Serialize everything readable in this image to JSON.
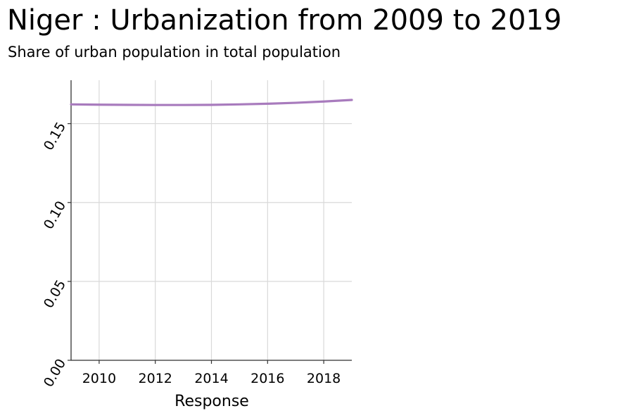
{
  "chart_data": {
    "type": "line",
    "title": "Niger : Urbanization from 2009 to 2019",
    "subtitle": "Share of urban population in total population",
    "xlabel": "Response",
    "ylabel": "",
    "x": [
      2009,
      2010,
      2011,
      2012,
      2013,
      2014,
      2015,
      2016,
      2017,
      2018,
      2019
    ],
    "series": [
      {
        "values": [
          0.1622,
          0.162,
          0.1619,
          0.1618,
          0.1618,
          0.1619,
          0.1622,
          0.1626,
          0.1632,
          0.164,
          0.165
        ]
      }
    ],
    "xlim": [
      2009,
      2019
    ],
    "ylim": [
      0,
      0.1775
    ],
    "x_ticks": [
      "2010",
      "2012",
      "2014",
      "2016",
      "2018"
    ],
    "y_ticks": [
      "0.00",
      "0.05",
      "0.10",
      "0.15"
    ],
    "grid": true,
    "line_color": "#a87bbd"
  }
}
